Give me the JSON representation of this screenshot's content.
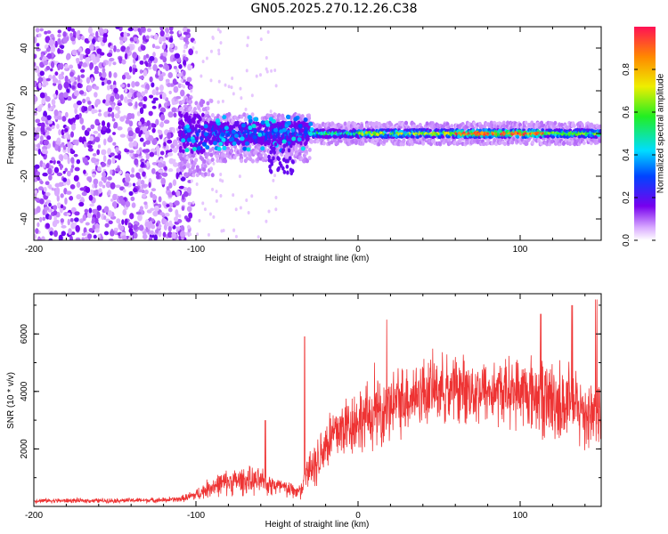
{
  "title": "GN05.2025.270.12.26.C38",
  "chart_data": [
    {
      "type": "heatmap",
      "xlabel": "Height of straight line (km)",
      "ylabel": "Frequency (Hz)",
      "xlim": [
        -200,
        150
      ],
      "ylim": [
        -50,
        50
      ],
      "xticks": [
        -200,
        -100,
        0,
        100
      ],
      "yticks": [
        -40,
        -20,
        0,
        20,
        40
      ],
      "colorbar": {
        "label": "Normalized spectral amplitude",
        "range": [
          0,
          1
        ],
        "ticks": [
          "0.0",
          "0.2",
          "0.4",
          "0.6",
          "0.8"
        ],
        "tick_values": [
          0,
          0.2,
          0.4,
          0.6,
          0.8
        ]
      },
      "features": [
        {
          "region": "noise",
          "x_range": [
            -200,
            -108
          ],
          "freq_range": [
            -50,
            50
          ],
          "amplitude": 0.15
        },
        {
          "region": "signal",
          "x_range": [
            -110,
            150
          ],
          "center_freq_hz": 0,
          "peak_amplitude": 1.0,
          "peak_x_range": [
            60,
            110
          ]
        }
      ]
    },
    {
      "type": "line",
      "xlabel": "Height of straight line (km)",
      "ylabel": "SNR (10 * v/v)",
      "xlim": [
        -200,
        150
      ],
      "ylim": [
        0,
        7400
      ],
      "xticks": [
        -200,
        -100,
        0,
        100
      ],
      "yticks": [
        2000,
        4000,
        6000
      ],
      "series": [
        {
          "name": "SNR",
          "color": "#ee3333",
          "x": [
            -200,
            -180,
            -160,
            -140,
            -120,
            -110,
            -100,
            -90,
            -80,
            -70,
            -60,
            -50,
            -40,
            -35,
            -30,
            -25,
            -20,
            -15,
            -10,
            -5,
            0,
            10,
            20,
            30,
            40,
            50,
            60,
            70,
            80,
            90,
            100,
            110,
            120,
            130,
            140,
            150
          ],
          "y": [
            200,
            200,
            200,
            210,
            220,
            250,
            400,
            700,
            850,
            900,
            850,
            700,
            550,
            500,
            1400,
            1600,
            2200,
            2500,
            2700,
            2900,
            3000,
            3200,
            3500,
            3800,
            4000,
            4100,
            4100,
            4050,
            4000,
            4000,
            4000,
            3900,
            3700,
            3500,
            3300,
            3200
          ],
          "spread": [
            100,
            100,
            100,
            100,
            110,
            120,
            250,
            450,
            550,
            600,
            550,
            450,
            350,
            400,
            900,
            1100,
            1300,
            1400,
            1400,
            1400,
            1400,
            1400,
            1500,
            1500,
            1500,
            1400,
            1400,
            1400,
            1400,
            1400,
            1500,
            1700,
            1800,
            1800,
            1700,
            1500
          ]
        }
      ]
    }
  ]
}
